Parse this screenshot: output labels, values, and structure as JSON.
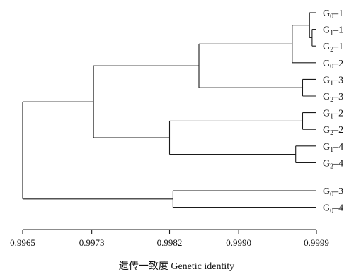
{
  "chart_data": {
    "type": "dendrogram",
    "leaves": [
      {
        "id": "G0-1",
        "prefix": "G",
        "sub": "0",
        "suffix": "–1"
      },
      {
        "id": "G1-1",
        "prefix": "G",
        "sub": "1",
        "suffix": "–1"
      },
      {
        "id": "G2-1",
        "prefix": "G",
        "sub": "2",
        "suffix": "–1"
      },
      {
        "id": "G0-2",
        "prefix": "G",
        "sub": "0",
        "suffix": "–2"
      },
      {
        "id": "G1-3",
        "prefix": "G",
        "sub": "1",
        "suffix": "–3"
      },
      {
        "id": "G2-3",
        "prefix": "G",
        "sub": "2",
        "suffix": "–3"
      },
      {
        "id": "G1-2",
        "prefix": "G",
        "sub": "1",
        "suffix": "–2"
      },
      {
        "id": "G2-2",
        "prefix": "G",
        "sub": "2",
        "suffix": "–2"
      },
      {
        "id": "G1-4",
        "prefix": "G",
        "sub": "1",
        "suffix": "–4"
      },
      {
        "id": "G2-4",
        "prefix": "G",
        "sub": "2",
        "suffix": "–4"
      },
      {
        "id": "G0-3",
        "prefix": "G",
        "sub": "0",
        "suffix": "–3"
      },
      {
        "id": "G0-4",
        "prefix": "G",
        "sub": "0",
        "suffix": "–4"
      }
    ],
    "merges": [
      {
        "id": "m1",
        "children": [
          "G1-1",
          "G2-1"
        ],
        "identity": 0.99985
      },
      {
        "id": "m2",
        "children": [
          "G0-1",
          "m1"
        ],
        "identity": 0.99982
      },
      {
        "id": "m3",
        "children": [
          "m2",
          "G0-2"
        ],
        "identity": 0.99962
      },
      {
        "id": "m4",
        "children": [
          "G1-3",
          "G2-3"
        ],
        "identity": 0.99974
      },
      {
        "id": "m5",
        "children": [
          "m3",
          "m4"
        ],
        "identity": 0.99854
      },
      {
        "id": "m6",
        "children": [
          "G1-2",
          "G2-2"
        ],
        "identity": 0.99974
      },
      {
        "id": "m7",
        "children": [
          "G1-4",
          "G2-4"
        ],
        "identity": 0.99966
      },
      {
        "id": "m8",
        "children": [
          "m6",
          "m7"
        ],
        "identity": 0.9982
      },
      {
        "id": "m9",
        "children": [
          "m5",
          "m8"
        ],
        "identity": 0.99732
      },
      {
        "id": "m10",
        "children": [
          "G0-3",
          "G0-4"
        ],
        "identity": 0.99824
      },
      {
        "id": "m11",
        "children": [
          "m9",
          "m10"
        ],
        "identity": 0.9965
      }
    ],
    "xlim": [
      0.9965,
      0.9999
    ],
    "xticks": [
      0.9965,
      0.9973,
      0.9982,
      0.999,
      0.9999
    ],
    "xtick_labels": [
      "0.9965",
      "0.9973",
      "0.9982",
      "0.9990",
      "0.9999"
    ],
    "xlabel": "遗传一致度 Genetic identity"
  }
}
